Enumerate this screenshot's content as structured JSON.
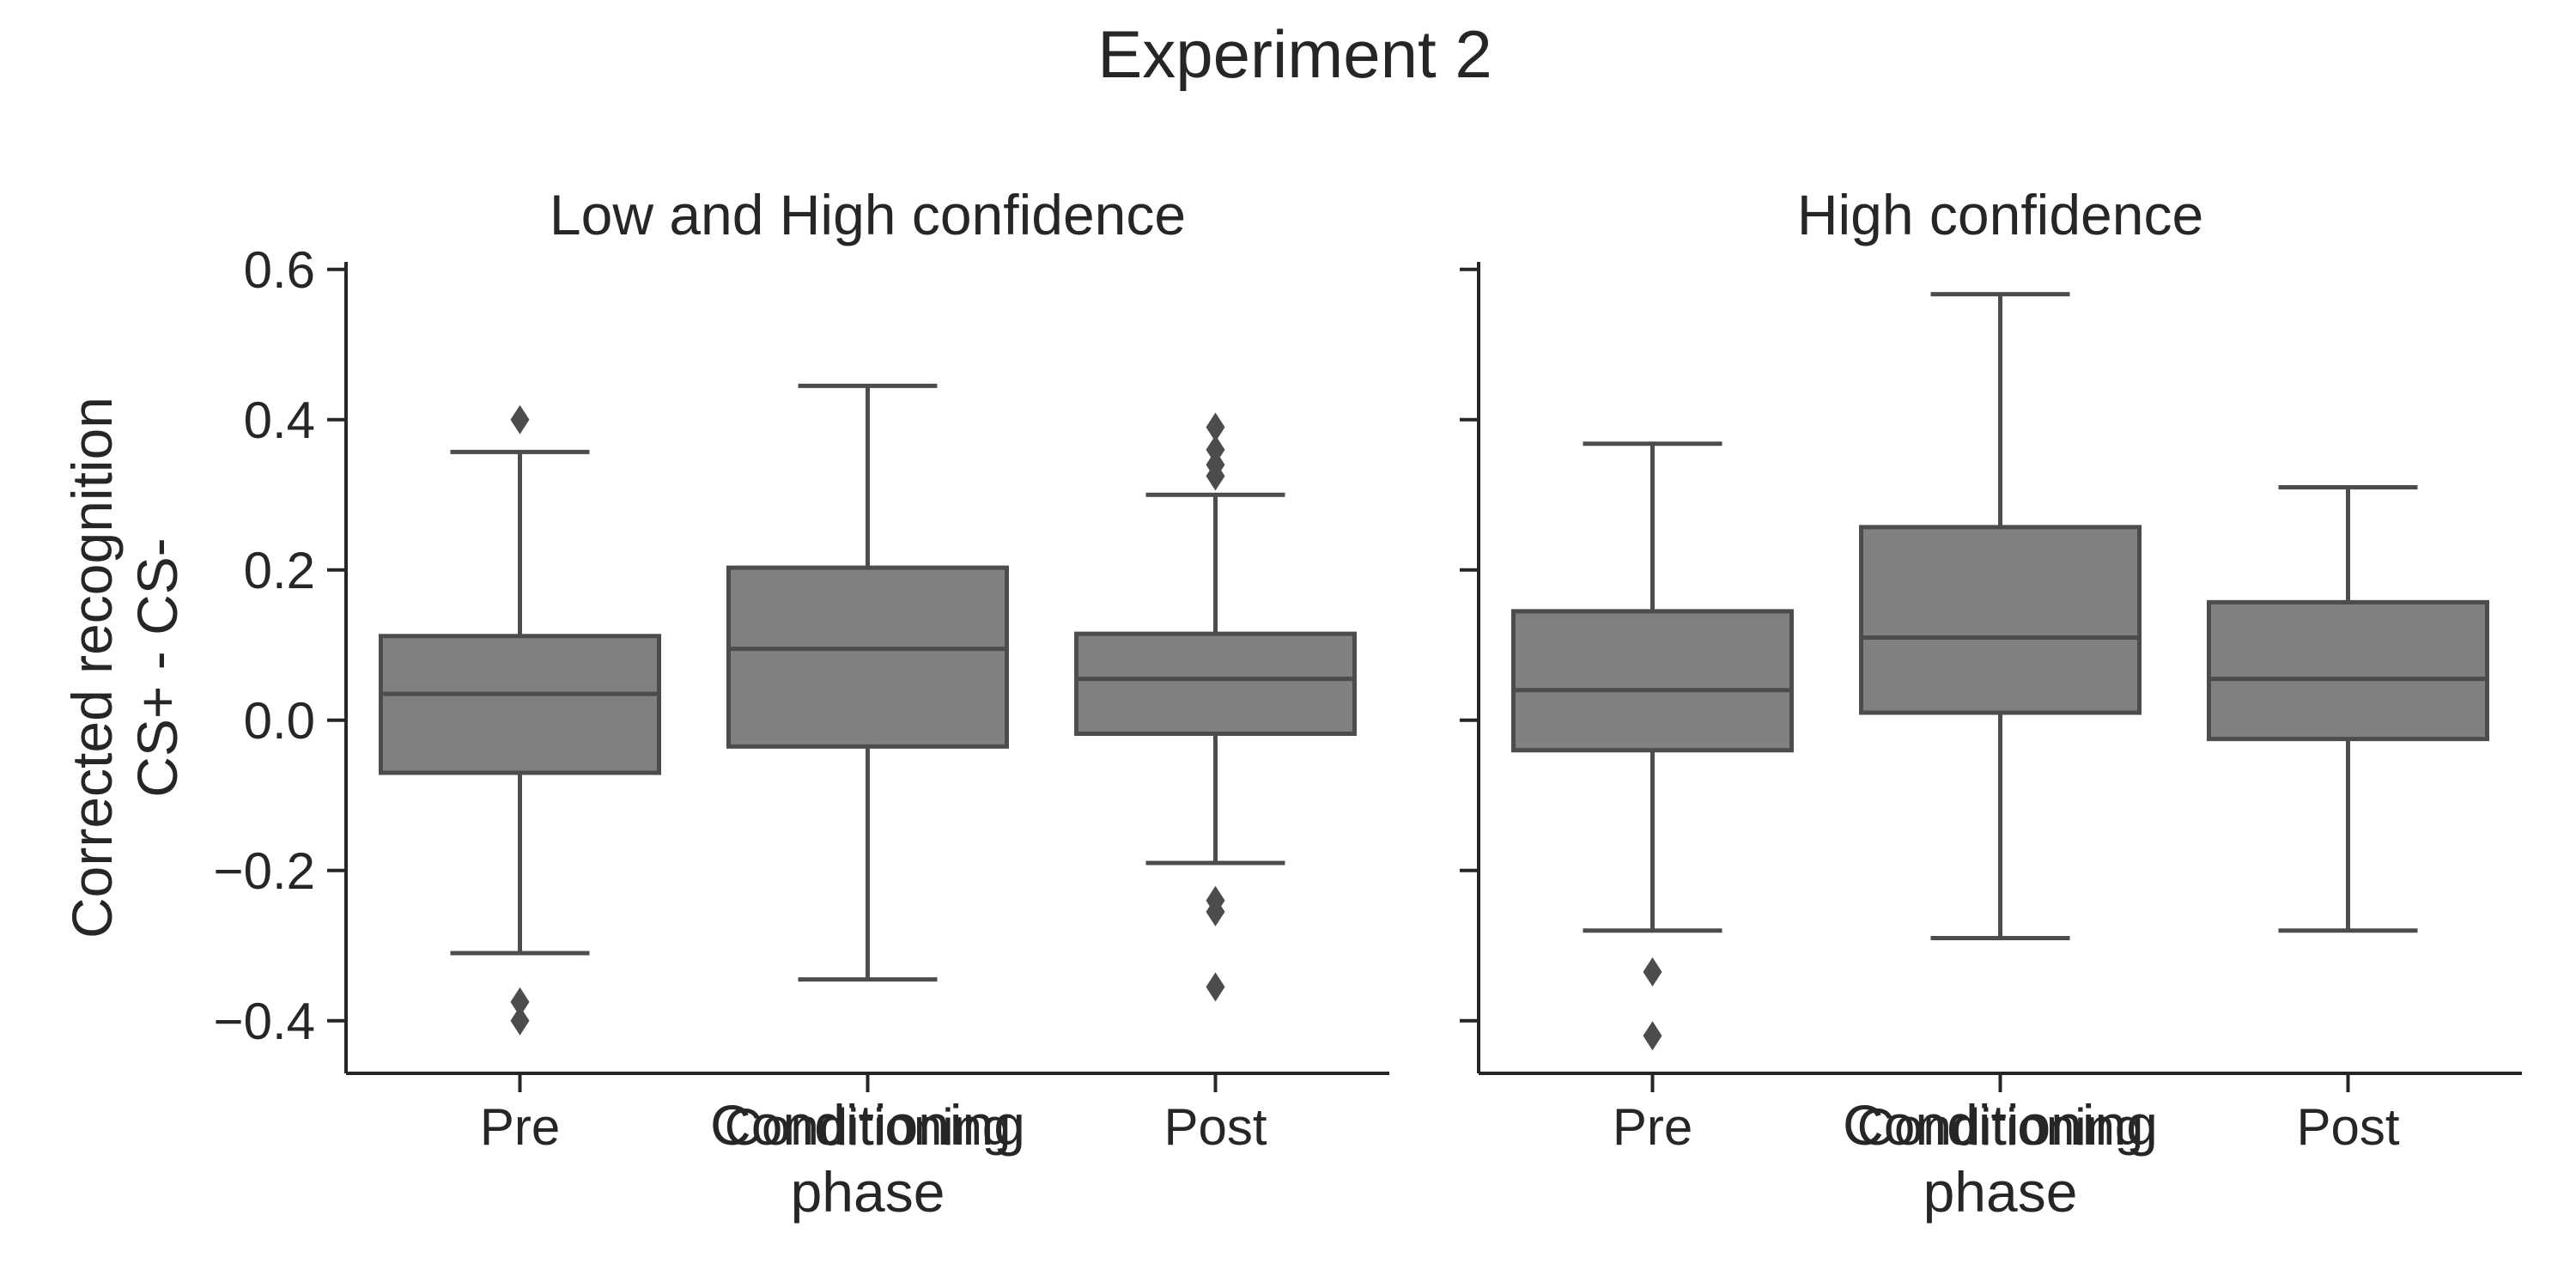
{
  "figure": {
    "title": "Experiment 2"
  },
  "chart_data": [
    {
      "type": "box",
      "title": "Low and High confidence",
      "xlabel": "Conditioning\nphase",
      "ylabel": "Corrected recognition\nCS+ - CS-",
      "categories": [
        "Pre",
        "Conditioning",
        "Post"
      ],
      "yticks": [
        -0.4,
        -0.2,
        0.0,
        0.2,
        0.4,
        0.6
      ],
      "ytick_labels": [
        "−0.4",
        "−0.2",
        "0.0",
        "0.2",
        "0.4",
        "0.6"
      ],
      "ylim": [
        -0.47,
        0.62
      ],
      "boxes": [
        {
          "category": "Pre",
          "whisker_low": -0.31,
          "q1": -0.07,
          "median": 0.035,
          "q3": 0.112,
          "whisker_high": 0.357,
          "outliers": [
            0.4,
            -0.375,
            -0.4
          ]
        },
        {
          "category": "Conditioning",
          "whisker_low": -0.345,
          "q1": -0.035,
          "median": 0.095,
          "q3": 0.203,
          "whisker_high": 0.445,
          "outliers": []
        },
        {
          "category": "Post",
          "whisker_low": -0.19,
          "q1": -0.018,
          "median": 0.055,
          "q3": 0.115,
          "whisker_high": 0.3,
          "outliers": [
            0.39,
            0.36,
            0.34,
            0.325,
            -0.24,
            -0.255,
            -0.355
          ]
        }
      ],
      "color": "#808080",
      "line_color": "#4c4c4c",
      "grid": false
    },
    {
      "type": "box",
      "title": "High confidence",
      "xlabel": "Conditioning\nphase",
      "ylabel": "",
      "categories": [
        "Pre",
        "Conditioning",
        "Post"
      ],
      "yticks": [
        -0.4,
        -0.2,
        0.0,
        0.2,
        0.4,
        0.6
      ],
      "ytick_labels": [],
      "ylim": [
        -0.47,
        0.62
      ],
      "boxes": [
        {
          "category": "Pre",
          "whisker_low": -0.28,
          "q1": -0.04,
          "median": 0.04,
          "q3": 0.145,
          "whisker_high": 0.368,
          "outliers": [
            -0.335,
            -0.42
          ]
        },
        {
          "category": "Conditioning",
          "whisker_low": -0.29,
          "q1": 0.01,
          "median": 0.11,
          "q3": 0.257,
          "whisker_high": 0.567,
          "outliers": []
        },
        {
          "category": "Post",
          "whisker_low": -0.28,
          "q1": -0.025,
          "median": 0.055,
          "q3": 0.157,
          "whisker_high": 0.31,
          "outliers": []
        }
      ],
      "color": "#808080",
      "line_color": "#4c4c4c",
      "grid": false
    }
  ]
}
